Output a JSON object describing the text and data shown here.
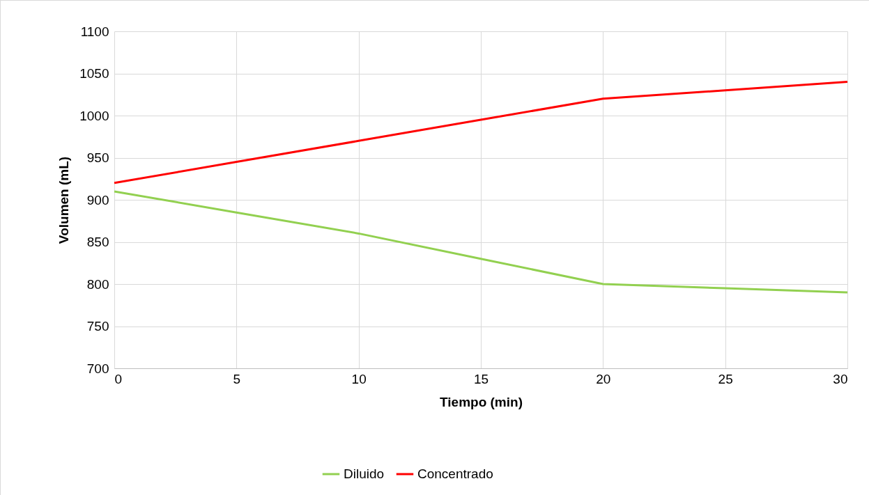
{
  "chart_data": {
    "type": "line",
    "xlabel": "Tiempo (min)",
    "ylabel": "Volumen (mL)",
    "x": [
      0,
      5,
      10,
      15,
      20,
      25,
      30
    ],
    "series": [
      {
        "name": "Diluido",
        "color": "#92d050",
        "values": [
          910,
          885,
          860,
          830,
          800,
          795,
          790
        ]
      },
      {
        "name": "Concentrado",
        "color": "#ff0000",
        "values": [
          920,
          945,
          970,
          995,
          1020,
          1030,
          1040
        ]
      }
    ],
    "xlim": [
      0,
      30
    ],
    "xticks": [
      0,
      5,
      10,
      15,
      20,
      25,
      30
    ],
    "ylim": [
      700,
      1100
    ],
    "yticks": [
      700,
      750,
      800,
      850,
      900,
      950,
      1000,
      1050,
      1100
    ],
    "grid": true,
    "legend": "bottom"
  }
}
